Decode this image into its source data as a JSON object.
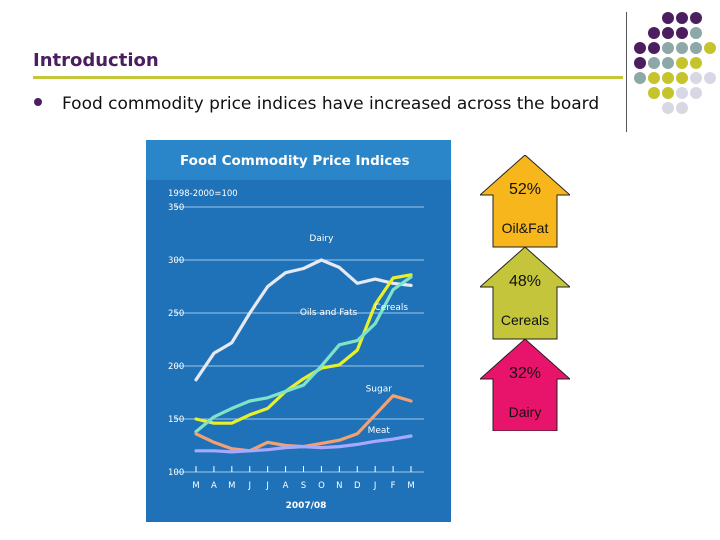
{
  "slide": {
    "title": "Introduction",
    "bullet": "Food commodity price indices have increased across the board"
  },
  "colors": {
    "title": "#4b1e5f",
    "rule": "#c6c63a",
    "chart_bg": "#1f72b8",
    "chart_header": "#2a86c8",
    "dairy": "#e6e9f2",
    "cereals": "#e9f02a",
    "oils": "#7fe3c6",
    "sugar": "#f4a172",
    "meat": "#a6a9ff",
    "arrow_oil": "#f7b71c",
    "arrow_cereals": "#c5c53b",
    "arrow_dairy": "#e8146c",
    "dot_purple": "#4b1e5f",
    "dot_teal": "#8ea8a8",
    "dot_olive": "#c5c42d",
    "dot_light": "#d8d8e4"
  },
  "chart_data": {
    "type": "line",
    "title": "Food Commodity Price Indices",
    "subtitle": "1998-2000=100",
    "xlabel": "2007/08",
    "ylabel": "",
    "ylim": [
      100,
      350
    ],
    "yticks": [
      100,
      150,
      200,
      250,
      300,
      350
    ],
    "categories": [
      "M",
      "A",
      "M",
      "J",
      "J",
      "A",
      "S",
      "O",
      "N",
      "D",
      "J",
      "F",
      "M"
    ],
    "grid": true,
    "series": [
      {
        "name": "Dairy",
        "values": [
          187,
          212,
          222,
          250,
          275,
          288,
          292,
          300,
          293,
          278,
          282,
          278,
          276
        ],
        "color": "#e6e9f2"
      },
      {
        "name": "Cereals",
        "values": [
          150,
          146,
          146,
          154,
          160,
          176,
          188,
          198,
          201,
          215,
          258,
          283,
          286
        ],
        "color": "#e9f02a"
      },
      {
        "name": "Oils and Fats",
        "values": [
          138,
          152,
          160,
          167,
          170,
          176,
          182,
          200,
          220,
          224,
          240,
          272,
          284
        ],
        "color": "#7fe3c6"
      },
      {
        "name": "Sugar",
        "values": [
          136,
          128,
          122,
          120,
          128,
          125,
          124,
          127,
          130,
          136,
          154,
          172,
          167
        ],
        "color": "#f4a172"
      },
      {
        "name": "Meat",
        "values": [
          120,
          120,
          119,
          120,
          121,
          123,
          124,
          123,
          124,
          126,
          129,
          131,
          134
        ],
        "color": "#a6a9ff"
      }
    ],
    "annotations": [
      {
        "text": "Dairy",
        "x": 7,
        "y": 318
      },
      {
        "text": "Cereals",
        "x": 10.9,
        "y": 253
      },
      {
        "text": "Oils and Fats",
        "x": 7.4,
        "y": 248
      },
      {
        "text": "Sugar",
        "x": 10.2,
        "y": 176
      },
      {
        "text": "Meat",
        "x": 10.2,
        "y": 137
      }
    ]
  },
  "arrows": [
    {
      "percent": "52%",
      "label": "Oil&Fat",
      "color": "#f7b71c"
    },
    {
      "percent": "48%",
      "label": "Cereals",
      "color": "#c5c53b"
    },
    {
      "percent": "32%",
      "label": "Dairy",
      "color": "#e8146c"
    }
  ]
}
